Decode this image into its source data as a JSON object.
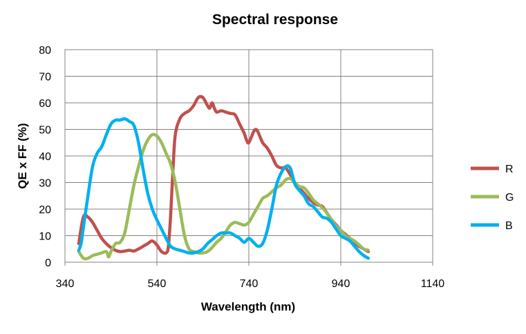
{
  "chart_data": {
    "type": "line",
    "title": "Spectral response",
    "xlabel": "Wavelength (nm)",
    "ylabel": "QE x FF (%)",
    "xlim": [
      340,
      1140
    ],
    "ylim": [
      0,
      80
    ],
    "xticks": [
      340,
      540,
      740,
      940,
      1140
    ],
    "yticks": [
      0,
      10,
      20,
      30,
      40,
      50,
      60,
      70,
      80
    ],
    "grid": true,
    "legend_position": "right",
    "series": [
      {
        "name": "R",
        "color": "#c0504d",
        "points": [
          [
            370,
            7
          ],
          [
            380,
            17
          ],
          [
            390,
            17
          ],
          [
            400,
            15
          ],
          [
            410,
            12
          ],
          [
            420,
            9
          ],
          [
            430,
            7
          ],
          [
            440,
            5.5
          ],
          [
            450,
            4.5
          ],
          [
            460,
            4
          ],
          [
            470,
            4.2
          ],
          [
            480,
            4.5
          ],
          [
            490,
            4.2
          ],
          [
            500,
            5
          ],
          [
            510,
            6
          ],
          [
            520,
            7
          ],
          [
            530,
            8
          ],
          [
            540,
            6.5
          ],
          [
            550,
            4
          ],
          [
            560,
            3.5
          ],
          [
            565,
            6
          ],
          [
            570,
            18
          ],
          [
            575,
            35
          ],
          [
            580,
            48
          ],
          [
            590,
            54
          ],
          [
            600,
            56
          ],
          [
            610,
            57
          ],
          [
            620,
            59
          ],
          [
            630,
            62
          ],
          [
            640,
            62
          ],
          [
            650,
            59
          ],
          [
            655,
            58
          ],
          [
            660,
            60
          ],
          [
            665,
            58
          ],
          [
            670,
            56.5
          ],
          [
            680,
            57
          ],
          [
            690,
            56.5
          ],
          [
            700,
            56
          ],
          [
            710,
            55.5
          ],
          [
            720,
            52
          ],
          [
            730,
            48.5
          ],
          [
            735,
            46
          ],
          [
            740,
            45
          ],
          [
            750,
            49
          ],
          [
            755,
            50
          ],
          [
            760,
            49
          ],
          [
            770,
            45
          ],
          [
            780,
            43
          ],
          [
            790,
            40
          ],
          [
            800,
            36.5
          ],
          [
            810,
            35.5
          ],
          [
            820,
            35.5
          ],
          [
            830,
            33
          ],
          [
            840,
            30
          ],
          [
            850,
            28
          ],
          [
            860,
            26
          ],
          [
            870,
            24
          ],
          [
            880,
            22.5
          ],
          [
            890,
            21.5
          ],
          [
            900,
            21
          ],
          [
            910,
            18.5
          ],
          [
            920,
            16
          ],
          [
            930,
            14
          ],
          [
            940,
            12
          ],
          [
            950,
            10.5
          ],
          [
            960,
            9
          ],
          [
            970,
            7.5
          ],
          [
            980,
            6
          ],
          [
            990,
            5
          ],
          [
            1000,
            4
          ]
        ]
      },
      {
        "name": "G",
        "color": "#9bbb59",
        "points": [
          [
            370,
            4
          ],
          [
            380,
            1.5
          ],
          [
            390,
            1.5
          ],
          [
            400,
            2.5
          ],
          [
            410,
            3
          ],
          [
            420,
            3.5
          ],
          [
            430,
            4
          ],
          [
            435,
            2
          ],
          [
            440,
            4
          ],
          [
            450,
            7
          ],
          [
            460,
            7.5
          ],
          [
            470,
            11
          ],
          [
            480,
            20
          ],
          [
            490,
            29
          ],
          [
            500,
            36
          ],
          [
            510,
            42
          ],
          [
            520,
            46
          ],
          [
            530,
            48
          ],
          [
            540,
            47.5
          ],
          [
            550,
            45
          ],
          [
            560,
            41
          ],
          [
            570,
            37
          ],
          [
            580,
            30
          ],
          [
            590,
            20
          ],
          [
            600,
            10
          ],
          [
            610,
            5
          ],
          [
            620,
            4
          ],
          [
            630,
            3.5
          ],
          [
            640,
            3.5
          ],
          [
            650,
            4
          ],
          [
            660,
            5.5
          ],
          [
            670,
            7.5
          ],
          [
            680,
            9
          ],
          [
            690,
            11.5
          ],
          [
            700,
            14
          ],
          [
            710,
            15
          ],
          [
            720,
            14.5
          ],
          [
            730,
            14
          ],
          [
            740,
            15
          ],
          [
            750,
            18
          ],
          [
            760,
            21
          ],
          [
            770,
            24
          ],
          [
            780,
            25
          ],
          [
            790,
            26.5
          ],
          [
            800,
            28
          ],
          [
            810,
            29
          ],
          [
            820,
            31
          ],
          [
            830,
            31.5
          ],
          [
            840,
            30
          ],
          [
            850,
            28.5
          ],
          [
            860,
            28
          ],
          [
            870,
            26
          ],
          [
            880,
            23.5
          ],
          [
            890,
            22
          ],
          [
            900,
            20.5
          ],
          [
            910,
            18.5
          ],
          [
            920,
            16
          ],
          [
            930,
            13.5
          ],
          [
            940,
            12
          ],
          [
            950,
            10
          ],
          [
            960,
            9
          ],
          [
            970,
            8
          ],
          [
            980,
            6.5
          ],
          [
            990,
            5
          ],
          [
            1000,
            4.5
          ]
        ]
      },
      {
        "name": "B",
        "color": "#00b0f0",
        "points": [
          [
            370,
            4.5
          ],
          [
            375,
            7
          ],
          [
            380,
            13
          ],
          [
            390,
            25
          ],
          [
            400,
            36
          ],
          [
            410,
            41
          ],
          [
            420,
            43.5
          ],
          [
            430,
            48
          ],
          [
            440,
            52
          ],
          [
            450,
            53.5
          ],
          [
            460,
            53.5
          ],
          [
            470,
            54
          ],
          [
            480,
            53
          ],
          [
            490,
            51.5
          ],
          [
            500,
            45
          ],
          [
            510,
            35
          ],
          [
            520,
            26
          ],
          [
            530,
            20
          ],
          [
            540,
            16
          ],
          [
            550,
            12.5
          ],
          [
            560,
            9
          ],
          [
            570,
            6
          ],
          [
            580,
            5
          ],
          [
            590,
            4.5
          ],
          [
            600,
            4
          ],
          [
            610,
            3.5
          ],
          [
            620,
            3.5
          ],
          [
            630,
            4
          ],
          [
            640,
            5
          ],
          [
            650,
            7
          ],
          [
            660,
            8.5
          ],
          [
            670,
            10
          ],
          [
            680,
            11
          ],
          [
            690,
            11
          ],
          [
            700,
            11
          ],
          [
            710,
            10
          ],
          [
            720,
            9
          ],
          [
            730,
            7.5
          ],
          [
            740,
            9
          ],
          [
            750,
            7.5
          ],
          [
            760,
            6
          ],
          [
            770,
            7
          ],
          [
            780,
            12
          ],
          [
            790,
            20
          ],
          [
            800,
            29
          ],
          [
            810,
            33.5
          ],
          [
            820,
            36
          ],
          [
            830,
            35.5
          ],
          [
            840,
            29.5
          ],
          [
            850,
            27
          ],
          [
            860,
            25
          ],
          [
            870,
            22
          ],
          [
            880,
            21
          ],
          [
            890,
            19
          ],
          [
            900,
            17
          ],
          [
            910,
            16.5
          ],
          [
            920,
            15
          ],
          [
            930,
            12.5
          ],
          [
            940,
            10
          ],
          [
            950,
            9
          ],
          [
            960,
            8
          ],
          [
            970,
            6
          ],
          [
            980,
            4
          ],
          [
            990,
            2.5
          ],
          [
            1000,
            1.5
          ]
        ]
      }
    ]
  }
}
